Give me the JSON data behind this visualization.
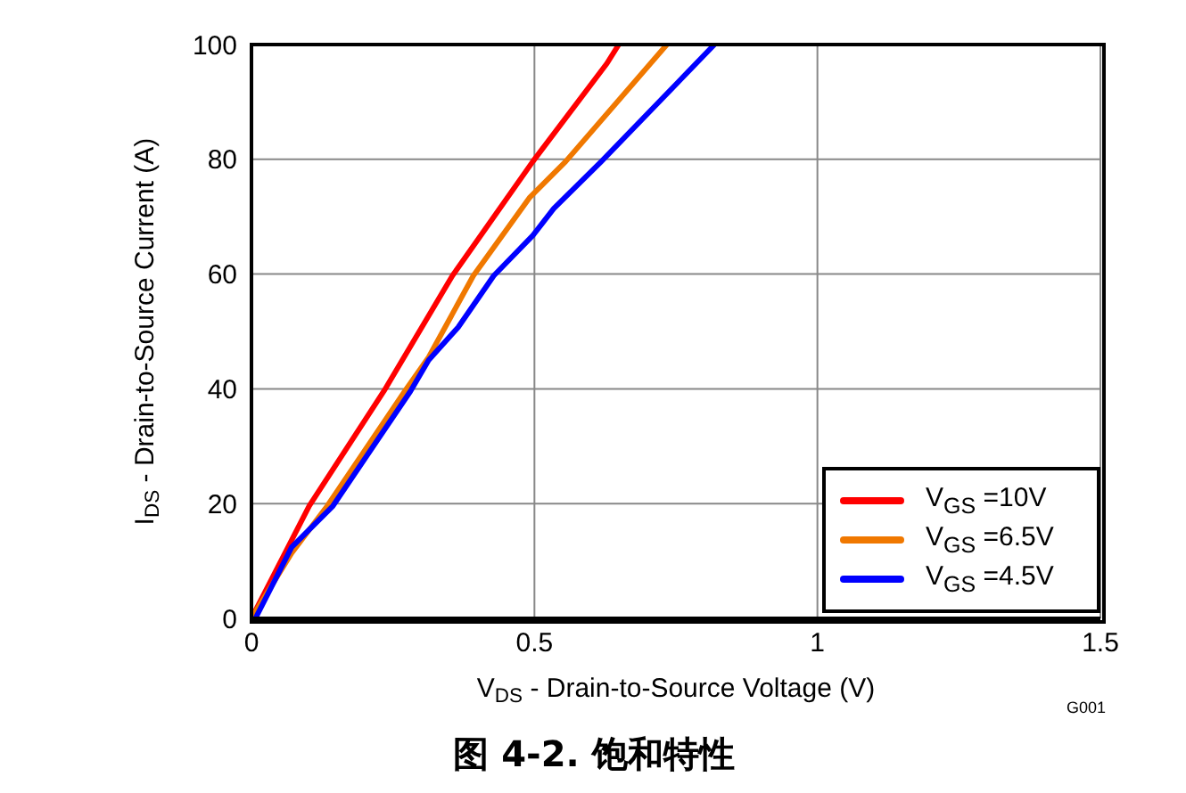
{
  "chart_data": {
    "type": "line",
    "title": "图 4-2. 饱和特性",
    "xlabel": "V$_{DS}$ - Drain-to-Source Voltage (V)",
    "ylabel": "I$_{DS}$ - Drain-to-Source Current (A)",
    "annotations": [
      "G001"
    ],
    "xlim": [
      0,
      1.5
    ],
    "xticks": [
      0,
      0.5,
      1,
      1.5
    ],
    "ylim": [
      0,
      100
    ],
    "yticks": [
      0,
      20,
      40,
      60,
      80,
      100
    ],
    "grid": true,
    "legend": "bottom right",
    "marker": "none",
    "line_style": "solid",
    "series": [
      {
        "name": "V$_{GS}$ =10V",
        "color": "#ff0000",
        "x": [
          0,
          0.102,
          0.234,
          0.355,
          0.497,
          0.628,
          0.649
        ],
        "values": [
          0,
          19.6,
          39.6,
          59.7,
          79.6,
          96.7,
          100
        ]
      },
      {
        "name": "V$_{GS}$ =6.5V",
        "color": "#f07800",
        "x": [
          0,
          0.071,
          0.134,
          0.271,
          0.313,
          0.392,
          0.492,
          0.555,
          0.734
        ],
        "values": [
          0,
          11.4,
          19.6,
          39.6,
          45.5,
          59.7,
          73.4,
          79.6,
          100
        ]
      },
      {
        "name": "V$_{GS}$ =4.5V",
        "color": "#0000ff",
        "x": [
          0.007,
          0.071,
          0.144,
          0.281,
          0.313,
          0.365,
          0.428,
          0.497,
          0.534,
          0.618,
          0.818
        ],
        "values": [
          0,
          12.4,
          19.6,
          39.6,
          45,
          50.7,
          59.7,
          66.7,
          71.4,
          79.6,
          100
        ]
      }
    ]
  }
}
